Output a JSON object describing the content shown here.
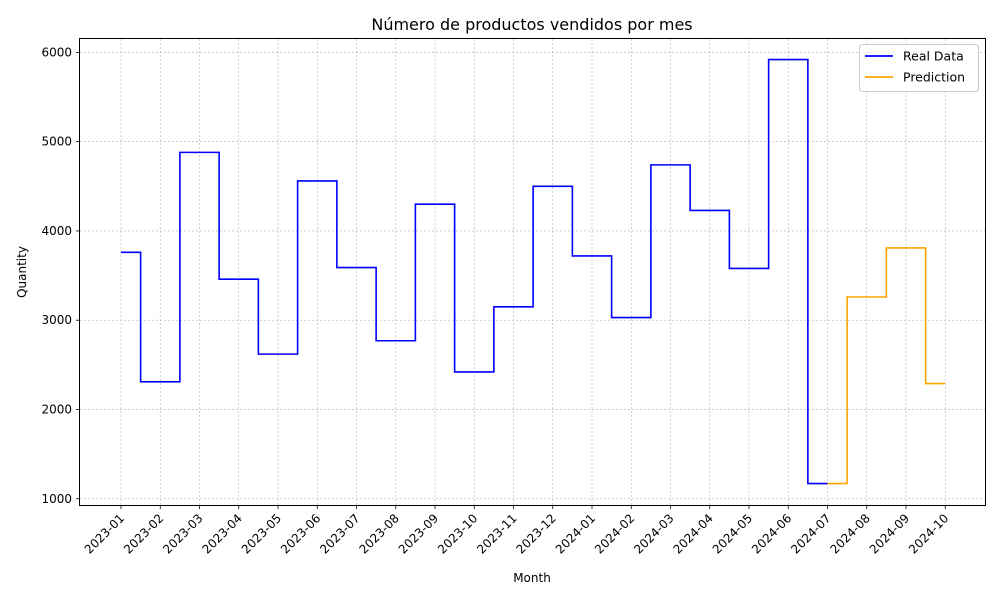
{
  "chart_data": {
    "type": "line",
    "title": "Número de productos vendidos por mes",
    "xlabel": "Month",
    "ylabel": "Quantity",
    "x": [
      "2023-01",
      "2023-02",
      "2023-03",
      "2023-04",
      "2023-05",
      "2023-06",
      "2023-07",
      "2023-08",
      "2023-09",
      "2023-10",
      "2023-11",
      "2023-12",
      "2024-01",
      "2024-02",
      "2024-03",
      "2024-04",
      "2024-05",
      "2024-06",
      "2024-07",
      "2024-08",
      "2024-09",
      "2024-10"
    ],
    "ylim": [
      930,
      6150
    ],
    "yticks": [
      1000,
      2000,
      3000,
      4000,
      5000,
      6000
    ],
    "grid": true,
    "legend_position": "top-right",
    "step": "mid",
    "series": [
      {
        "name": "Real Data",
        "color": "#0000ff",
        "x": [
          "2023-01",
          "2023-02",
          "2023-03",
          "2023-04",
          "2023-05",
          "2023-06",
          "2023-07",
          "2023-08",
          "2023-09",
          "2023-10",
          "2023-11",
          "2023-12",
          "2024-01",
          "2024-02",
          "2024-03",
          "2024-04",
          "2024-05",
          "2024-06",
          "2024-07"
        ],
        "values": [
          3760,
          2310,
          4880,
          3460,
          2620,
          4560,
          3590,
          2770,
          4300,
          2420,
          3150,
          4500,
          3720,
          3030,
          4740,
          4230,
          3580,
          5920,
          1170
        ]
      },
      {
        "name": "Prediction",
        "color": "#ffa500",
        "x": [
          "2024-07",
          "2024-08",
          "2024-09",
          "2024-10"
        ],
        "values": [
          1170,
          3260,
          3810,
          2290
        ]
      }
    ]
  }
}
